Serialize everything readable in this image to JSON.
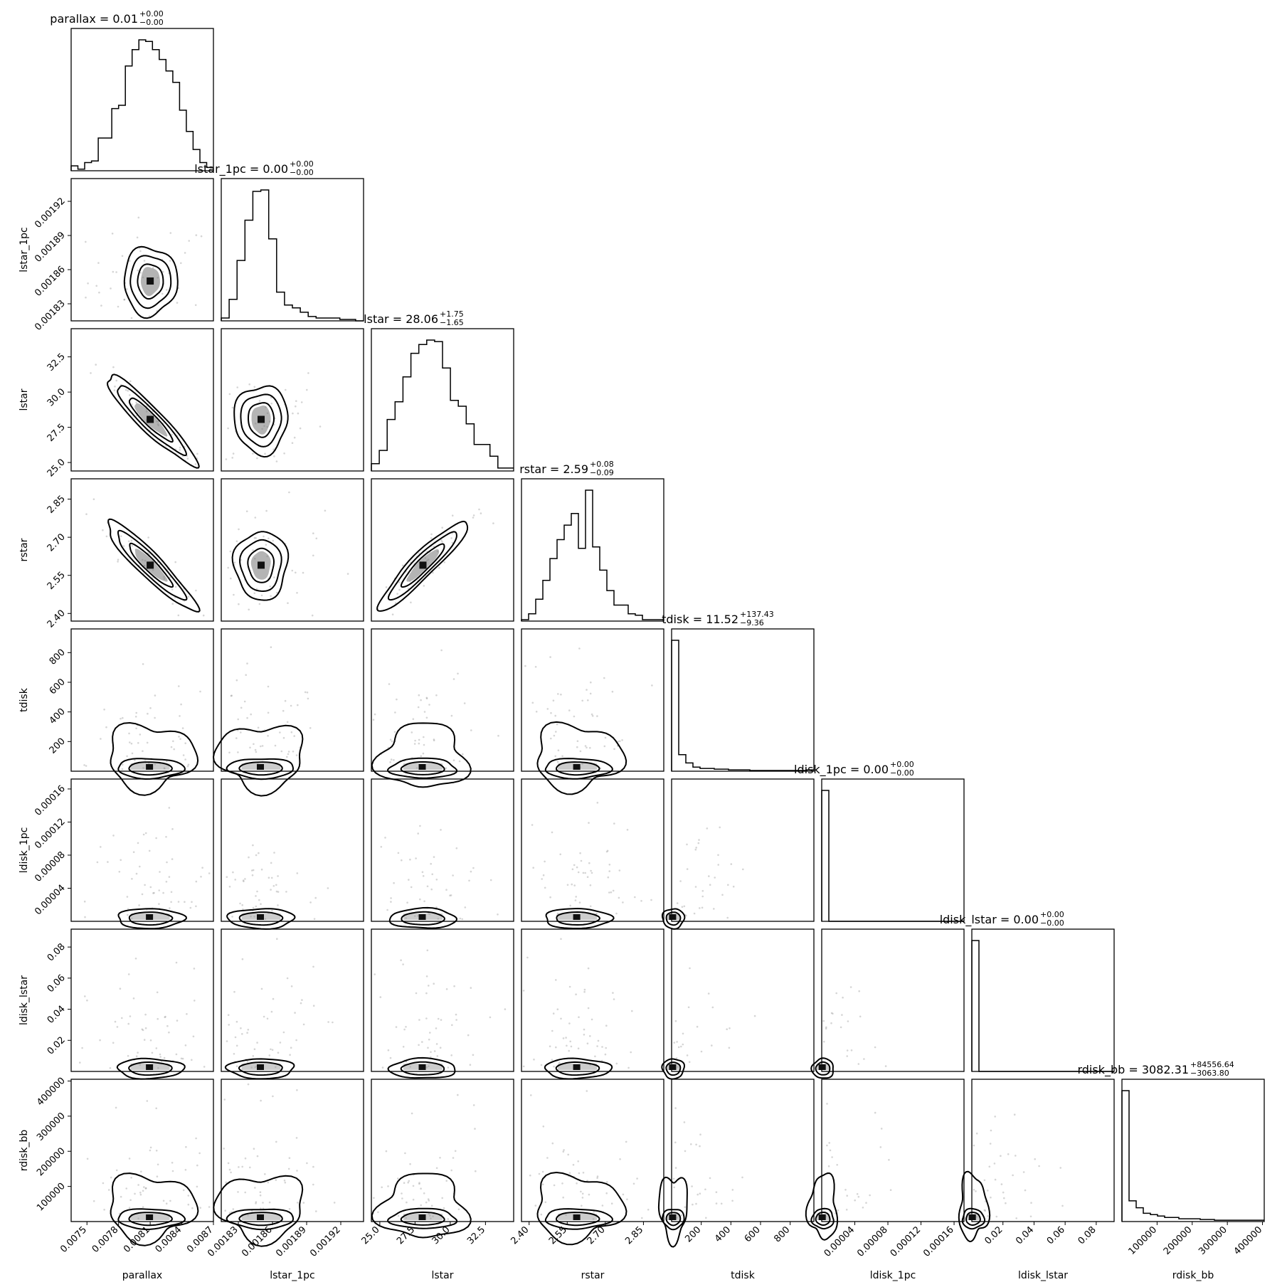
{
  "chart_data": {
    "type": "corner",
    "parameters": [
      {
        "name": "parallax",
        "median": "0.01",
        "plus": "+0.00",
        "minus": "−0.00",
        "range": [
          0.00735,
          0.0087
        ],
        "ticks": [
          0.0075,
          0.0078,
          0.0081,
          0.0084,
          0.0087
        ],
        "tick_labels": [
          "0.0075",
          "0.0078",
          "0.0081",
          "0.0084",
          "0.0087"
        ],
        "xlabel": "parallax",
        "ylabel": "",
        "hist": [
          3,
          1,
          5,
          6,
          20,
          20,
          38,
          40,
          64,
          74,
          80,
          79,
          74,
          68,
          61,
          54,
          37,
          24,
          13,
          5,
          2
        ]
      },
      {
        "name": "lstar_1pc",
        "median": "0.00",
        "plus": "+0.00",
        "minus": "−0.00",
        "range": [
          0.001815,
          0.00194
        ],
        "ticks": [
          0.00183,
          0.00186,
          0.00189,
          0.00192
        ],
        "tick_labels": [
          "0.00183",
          "0.00186",
          "0.00189",
          "0.00192"
        ],
        "xlabel": "lstar_1pc",
        "ylabel": "lstar_1pc",
        "hist": [
          2,
          15,
          42,
          70,
          90,
          91,
          57,
          20,
          11,
          9,
          6,
          3,
          2,
          2,
          2,
          1,
          1,
          0
        ]
      },
      {
        "name": "lstar",
        "median": "28.06",
        "plus": "+1.75",
        "minus": "−1.65",
        "range": [
          24.4,
          34.5
        ],
        "ticks": [
          25.0,
          27.5,
          30.0,
          32.5
        ],
        "tick_labels": [
          "25.0",
          "27.5",
          "30.0",
          "32.5"
        ],
        "xlabel": "lstar",
        "ylabel": "lstar",
        "hist": [
          5,
          14,
          35,
          47,
          64,
          80,
          86,
          89,
          88,
          70,
          48,
          44,
          32,
          18,
          18,
          10,
          2,
          2
        ]
      },
      {
        "name": "rstar",
        "median": "2.59",
        "plus": "+0.08",
        "minus": "−0.09",
        "range": [
          2.37,
          2.93
        ],
        "ticks": [
          2.4,
          2.55,
          2.7,
          2.85
        ],
        "tick_labels": [
          "2.40",
          "2.55",
          "2.70",
          "2.85"
        ],
        "xlabel": "rstar",
        "ylabel": "rstar",
        "hist": [
          1,
          5,
          15,
          28,
          43,
          56,
          66,
          74,
          50,
          90,
          51,
          35,
          21,
          11,
          11,
          5,
          4,
          1,
          1,
          1
        ]
      },
      {
        "name": "tdisk",
        "median": "11.52",
        "plus": "+137.43",
        "minus": "−9.36",
        "range": [
          0,
          960
        ],
        "ticks": [
          200,
          400,
          600,
          800
        ],
        "tick_labels": [
          "200",
          "400",
          "600",
          "800"
        ],
        "xlabel": "tdisk",
        "ylabel": "tdisk",
        "hist": [
          95,
          12,
          6,
          3,
          2,
          2,
          1.5,
          1.5,
          1,
          1,
          1,
          0.5,
          0.5,
          0.5,
          0.5,
          0.5,
          0.5,
          0.5,
          0.5,
          1
        ]
      },
      {
        "name": "ldisk_1pc",
        "median": "0.00",
        "plus": "+0.00",
        "minus": "−0.00",
        "range": [
          0,
          0.000172
        ],
        "ticks": [
          4e-05,
          8e-05,
          0.00012,
          0.00016
        ],
        "tick_labels": [
          "0.00004",
          "0.00008",
          "0.00012",
          "0.00016"
        ],
        "xlabel": "ldisk_1pc",
        "ylabel": "ldisk_1pc",
        "hist": [
          100,
          0,
          0,
          0,
          0,
          0,
          0,
          0,
          0,
          0,
          0,
          0,
          0,
          0,
          0,
          0,
          0,
          0,
          0,
          0
        ]
      },
      {
        "name": "ldisk_lstar",
        "median": "0.00",
        "plus": "+0.00",
        "minus": "−0.00",
        "range": [
          0,
          0.0915
        ],
        "ticks": [
          0.02,
          0.04,
          0.06,
          0.08
        ],
        "tick_labels": [
          "0.02",
          "0.04",
          "0.06",
          "0.08"
        ],
        "xlabel": "ldisk_lstar",
        "ylabel": "ldisk_lstar",
        "hist": [
          100,
          0,
          0,
          0,
          0,
          0,
          0,
          0,
          0,
          0,
          0,
          0,
          0,
          0,
          0,
          0,
          0,
          0,
          0,
          0
        ]
      },
      {
        "name": "rdisk_bb",
        "median": "3082.31",
        "plus": "+84556.64",
        "minus": "−3063.80",
        "range": [
          0,
          405000
        ],
        "ticks": [
          100000,
          200000,
          300000,
          400000
        ],
        "tick_labels": [
          "100000",
          "200000",
          "300000",
          "400000"
        ],
        "xlabel": "rdisk_bb",
        "ylabel": "rdisk_bb",
        "hist": [
          95,
          15,
          10,
          6,
          5,
          4,
          3,
          3,
          2,
          2,
          2,
          1.5,
          1.5,
          1,
          1,
          1,
          1,
          1,
          1,
          1
        ]
      }
    ]
  }
}
